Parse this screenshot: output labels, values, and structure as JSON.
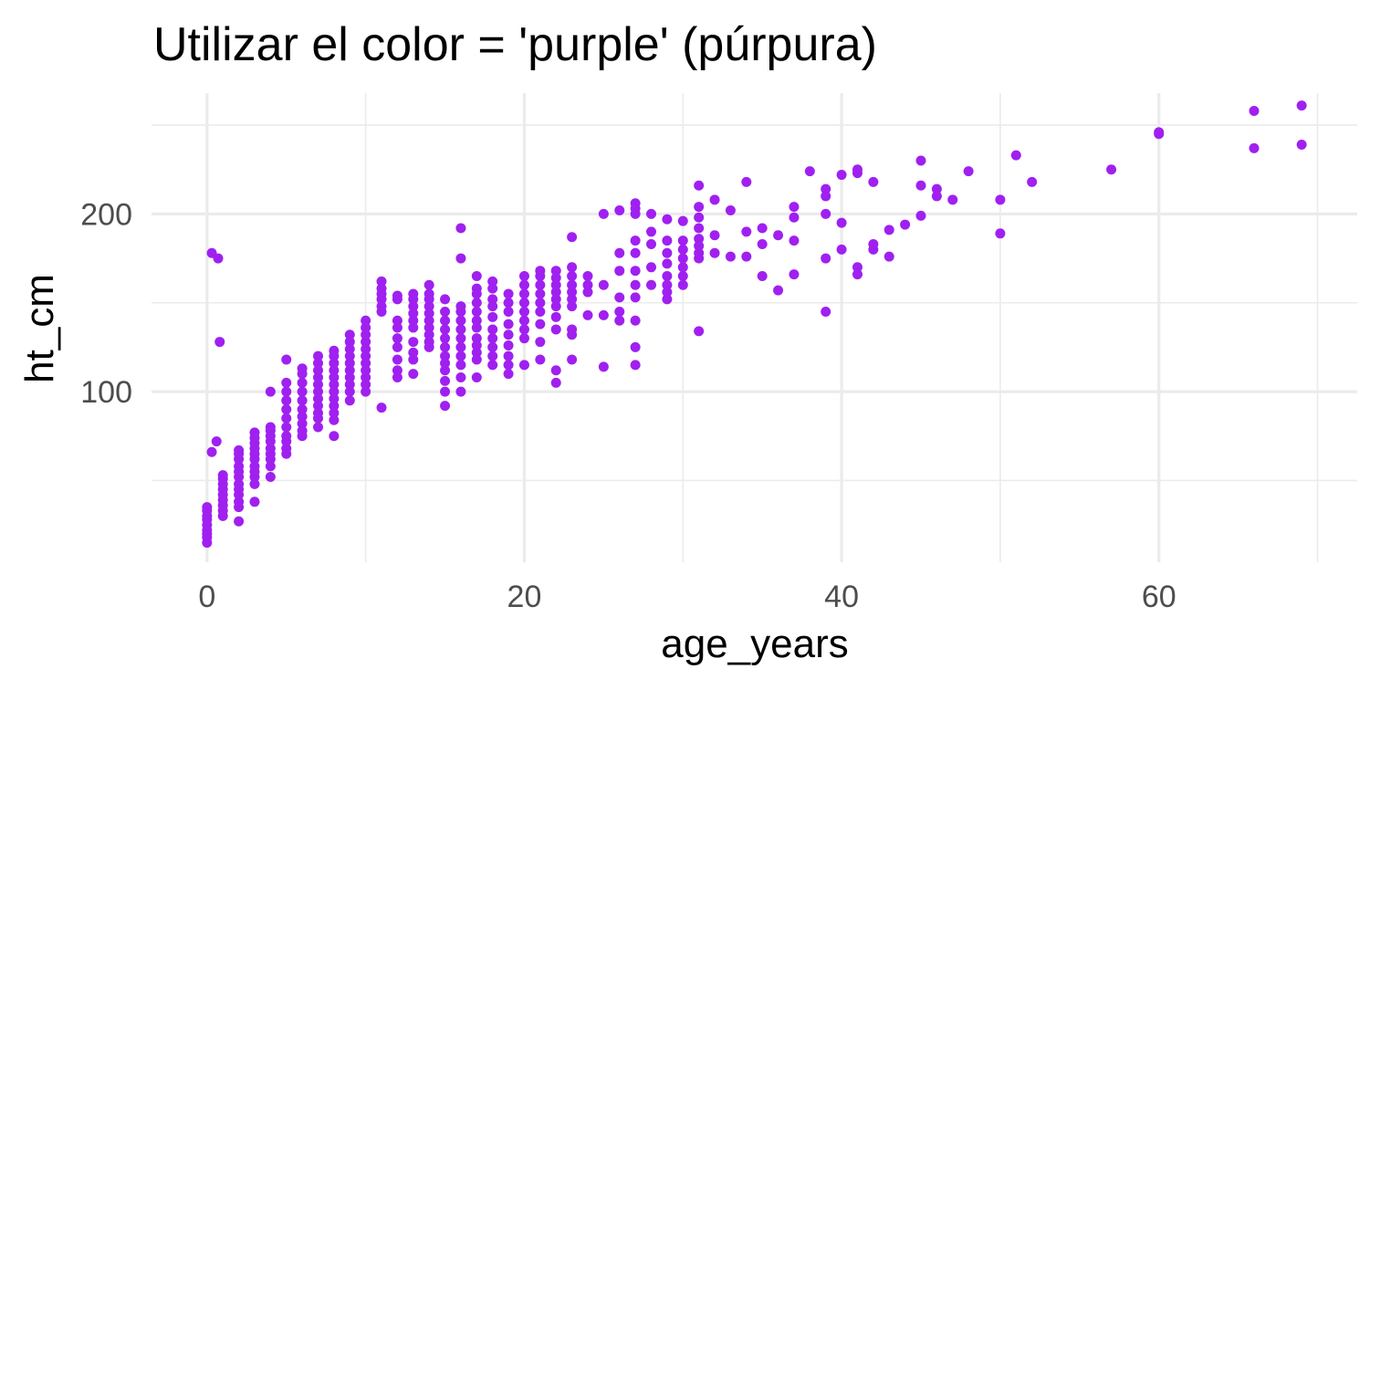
{
  "chart_data": {
    "type": "scatter",
    "title": "Utilizar el color = 'purple' (púrpura)",
    "xlabel": "age_years",
    "ylabel": "ht_cm",
    "xlim": [
      -3.5,
      72.5
    ],
    "ylim": [
      4,
      268
    ],
    "x_ticks": [
      0,
      20,
      40,
      60
    ],
    "x_tick_labels": [
      "0",
      "20",
      "40",
      "60"
    ],
    "x_minor_ticks": [
      10,
      30,
      50,
      70
    ],
    "y_ticks": [
      100,
      200
    ],
    "y_tick_labels": [
      "100",
      "200"
    ],
    "y_minor_ticks": [
      50,
      150,
      250
    ],
    "grid": true,
    "point_color": "#a020f0",
    "points": [
      [
        0,
        15
      ],
      [
        0,
        18
      ],
      [
        0,
        20
      ],
      [
        0,
        22
      ],
      [
        0,
        25
      ],
      [
        0,
        28
      ],
      [
        0,
        30
      ],
      [
        0,
        33
      ],
      [
        0,
        35
      ],
      [
        0.3,
        178
      ],
      [
        0.3,
        66
      ],
      [
        0.6,
        72
      ],
      [
        0.7,
        175
      ],
      [
        0.8,
        128
      ],
      [
        1,
        30
      ],
      [
        1,
        33
      ],
      [
        1,
        36
      ],
      [
        1,
        39
      ],
      [
        1,
        42
      ],
      [
        1,
        45
      ],
      [
        1,
        48
      ],
      [
        1,
        51
      ],
      [
        1,
        53
      ],
      [
        2,
        27
      ],
      [
        2,
        35
      ],
      [
        2,
        38
      ],
      [
        2,
        42
      ],
      [
        2,
        45
      ],
      [
        2,
        48
      ],
      [
        2,
        52
      ],
      [
        2,
        55
      ],
      [
        2,
        58
      ],
      [
        2,
        62
      ],
      [
        2,
        65
      ],
      [
        2,
        67
      ],
      [
        3,
        38
      ],
      [
        3,
        48
      ],
      [
        3,
        52
      ],
      [
        3,
        55
      ],
      [
        3,
        58
      ],
      [
        3,
        62
      ],
      [
        3,
        65
      ],
      [
        3,
        68
      ],
      [
        3,
        71
      ],
      [
        3,
        74
      ],
      [
        3,
        77
      ],
      [
        4,
        52
      ],
      [
        4,
        58
      ],
      [
        4,
        62
      ],
      [
        4,
        65
      ],
      [
        4,
        68
      ],
      [
        4,
        72
      ],
      [
        4,
        75
      ],
      [
        4,
        78
      ],
      [
        4,
        80
      ],
      [
        4,
        100
      ],
      [
        5,
        65
      ],
      [
        5,
        68
      ],
      [
        5,
        72
      ],
      [
        5,
        75
      ],
      [
        5,
        80
      ],
      [
        5,
        85
      ],
      [
        5,
        90
      ],
      [
        5,
        95
      ],
      [
        5,
        100
      ],
      [
        5,
        105
      ],
      [
        5,
        118
      ],
      [
        6,
        75
      ],
      [
        6,
        78
      ],
      [
        6,
        82
      ],
      [
        6,
        86
      ],
      [
        6,
        90
      ],
      [
        6,
        95
      ],
      [
        6,
        100
      ],
      [
        6,
        105
      ],
      [
        6,
        110
      ],
      [
        6,
        113
      ],
      [
        7,
        80
      ],
      [
        7,
        85
      ],
      [
        7,
        88
      ],
      [
        7,
        92
      ],
      [
        7,
        96
      ],
      [
        7,
        100
      ],
      [
        7,
        104
      ],
      [
        7,
        108
      ],
      [
        7,
        112
      ],
      [
        7,
        116
      ],
      [
        7,
        120
      ],
      [
        8,
        75
      ],
      [
        8,
        84
      ],
      [
        8,
        88
      ],
      [
        8,
        92
      ],
      [
        8,
        96
      ],
      [
        8,
        100
      ],
      [
        8,
        104
      ],
      [
        8,
        108
      ],
      [
        8,
        112
      ],
      [
        8,
        116
      ],
      [
        8,
        120
      ],
      [
        8,
        123
      ],
      [
        9,
        95
      ],
      [
        9,
        100
      ],
      [
        9,
        104
      ],
      [
        9,
        108
      ],
      [
        9,
        112
      ],
      [
        9,
        116
      ],
      [
        9,
        120
      ],
      [
        9,
        124
      ],
      [
        9,
        128
      ],
      [
        9,
        132
      ],
      [
        10,
        100
      ],
      [
        10,
        104
      ],
      [
        10,
        108
      ],
      [
        10,
        112
      ],
      [
        10,
        116
      ],
      [
        10,
        120
      ],
      [
        10,
        124
      ],
      [
        10,
        128
      ],
      [
        10,
        132
      ],
      [
        10,
        136
      ],
      [
        10,
        140
      ],
      [
        11,
        91
      ],
      [
        11,
        145
      ],
      [
        11,
        148
      ],
      [
        11,
        152
      ],
      [
        11,
        155
      ],
      [
        11,
        158
      ],
      [
        11,
        162
      ],
      [
        12,
        108
      ],
      [
        12,
        112
      ],
      [
        12,
        118
      ],
      [
        12,
        125
      ],
      [
        12,
        130
      ],
      [
        12,
        136
      ],
      [
        12,
        140
      ],
      [
        12,
        152
      ],
      [
        12,
        154
      ],
      [
        13,
        110
      ],
      [
        13,
        118
      ],
      [
        13,
        122
      ],
      [
        13,
        128
      ],
      [
        13,
        136
      ],
      [
        13,
        140
      ],
      [
        13,
        144
      ],
      [
        13,
        148
      ],
      [
        13,
        152
      ],
      [
        13,
        155
      ],
      [
        14,
        125
      ],
      [
        14,
        128
      ],
      [
        14,
        132
      ],
      [
        14,
        136
      ],
      [
        14,
        140
      ],
      [
        14,
        144
      ],
      [
        14,
        148
      ],
      [
        14,
        152
      ],
      [
        14,
        155
      ],
      [
        14,
        160
      ],
      [
        15,
        92
      ],
      [
        15,
        100
      ],
      [
        15,
        106
      ],
      [
        15,
        112
      ],
      [
        15,
        116
      ],
      [
        15,
        120
      ],
      [
        15,
        125
      ],
      [
        15,
        130
      ],
      [
        15,
        135
      ],
      [
        15,
        140
      ],
      [
        15,
        145
      ],
      [
        15,
        152
      ],
      [
        16,
        100
      ],
      [
        16,
        108
      ],
      [
        16,
        115
      ],
      [
        16,
        120
      ],
      [
        16,
        125
      ],
      [
        16,
        130
      ],
      [
        16,
        135
      ],
      [
        16,
        140
      ],
      [
        16,
        145
      ],
      [
        16,
        148
      ],
      [
        16,
        175
      ],
      [
        16,
        192
      ],
      [
        17,
        108
      ],
      [
        17,
        118
      ],
      [
        17,
        122
      ],
      [
        17,
        126
      ],
      [
        17,
        130
      ],
      [
        17,
        136
      ],
      [
        17,
        140
      ],
      [
        17,
        145
      ],
      [
        17,
        150
      ],
      [
        17,
        155
      ],
      [
        17,
        158
      ],
      [
        17,
        165
      ],
      [
        18,
        115
      ],
      [
        18,
        120
      ],
      [
        18,
        125
      ],
      [
        18,
        130
      ],
      [
        18,
        135
      ],
      [
        18,
        142
      ],
      [
        18,
        148
      ],
      [
        18,
        152
      ],
      [
        18,
        158
      ],
      [
        18,
        162
      ],
      [
        19,
        110
      ],
      [
        19,
        115
      ],
      [
        19,
        120
      ],
      [
        19,
        126
      ],
      [
        19,
        132
      ],
      [
        19,
        138
      ],
      [
        19,
        145
      ],
      [
        19,
        150
      ],
      [
        19,
        155
      ],
      [
        20,
        115
      ],
      [
        20,
        130
      ],
      [
        20,
        135
      ],
      [
        20,
        140
      ],
      [
        20,
        145
      ],
      [
        20,
        150
      ],
      [
        20,
        155
      ],
      [
        20,
        160
      ],
      [
        20,
        165
      ],
      [
        21,
        118
      ],
      [
        21,
        128
      ],
      [
        21,
        138
      ],
      [
        21,
        145
      ],
      [
        21,
        150
      ],
      [
        21,
        155
      ],
      [
        21,
        160
      ],
      [
        21,
        165
      ],
      [
        21,
        168
      ],
      [
        22,
        105
      ],
      [
        22,
        112
      ],
      [
        22,
        135
      ],
      [
        22,
        142
      ],
      [
        22,
        148
      ],
      [
        22,
        152
      ],
      [
        22,
        156
      ],
      [
        22,
        160
      ],
      [
        22,
        164
      ],
      [
        22,
        168
      ],
      [
        23,
        118
      ],
      [
        23,
        132
      ],
      [
        23,
        135
      ],
      [
        23,
        148
      ],
      [
        23,
        152
      ],
      [
        23,
        156
      ],
      [
        23,
        160
      ],
      [
        23,
        165
      ],
      [
        23,
        170
      ],
      [
        23,
        187
      ],
      [
        24,
        143
      ],
      [
        24,
        156
      ],
      [
        24,
        160
      ],
      [
        24,
        165
      ],
      [
        25,
        114
      ],
      [
        25,
        143
      ],
      [
        25,
        160
      ],
      [
        25,
        200
      ],
      [
        26,
        140
      ],
      [
        26,
        145
      ],
      [
        26,
        153
      ],
      [
        26,
        168
      ],
      [
        26,
        178
      ],
      [
        26,
        202
      ],
      [
        27,
        115
      ],
      [
        27,
        125
      ],
      [
        27,
        140
      ],
      [
        27,
        153
      ],
      [
        27,
        160
      ],
      [
        27,
        168
      ],
      [
        27,
        178
      ],
      [
        27,
        185
      ],
      [
        27,
        200
      ],
      [
        27,
        203
      ],
      [
        27,
        206
      ],
      [
        28,
        160
      ],
      [
        28,
        170
      ],
      [
        28,
        183
      ],
      [
        28,
        190
      ],
      [
        28,
        200
      ],
      [
        29,
        152
      ],
      [
        29,
        156
      ],
      [
        29,
        160
      ],
      [
        29,
        165
      ],
      [
        29,
        172
      ],
      [
        29,
        178
      ],
      [
        29,
        185
      ],
      [
        29,
        197
      ],
      [
        30,
        160
      ],
      [
        30,
        165
      ],
      [
        30,
        170
      ],
      [
        30,
        175
      ],
      [
        30,
        180
      ],
      [
        30,
        185
      ],
      [
        30,
        196
      ],
      [
        31,
        134
      ],
      [
        31,
        175
      ],
      [
        31,
        178
      ],
      [
        31,
        182
      ],
      [
        31,
        186
      ],
      [
        31,
        192
      ],
      [
        31,
        198
      ],
      [
        31,
        204
      ],
      [
        31,
        216
      ],
      [
        32,
        178
      ],
      [
        32,
        188
      ],
      [
        32,
        208
      ],
      [
        33,
        176
      ],
      [
        33,
        202
      ],
      [
        34,
        176
      ],
      [
        34,
        190
      ],
      [
        34,
        218
      ],
      [
        35,
        165
      ],
      [
        35,
        183
      ],
      [
        35,
        192
      ],
      [
        36,
        157
      ],
      [
        36,
        188
      ],
      [
        37,
        166
      ],
      [
        37,
        185
      ],
      [
        37,
        198
      ],
      [
        37,
        204
      ],
      [
        38,
        224
      ],
      [
        39,
        145
      ],
      [
        39,
        175
      ],
      [
        39,
        200
      ],
      [
        39,
        210
      ],
      [
        39,
        214
      ],
      [
        40,
        180
      ],
      [
        40,
        195
      ],
      [
        40,
        222
      ],
      [
        41,
        166
      ],
      [
        41,
        170
      ],
      [
        41,
        223
      ],
      [
        41,
        225
      ],
      [
        42,
        180
      ],
      [
        42,
        183
      ],
      [
        42,
        218
      ],
      [
        43,
        176
      ],
      [
        43,
        191
      ],
      [
        44,
        194
      ],
      [
        45,
        199
      ],
      [
        45,
        216
      ],
      [
        45,
        230
      ],
      [
        46,
        210
      ],
      [
        46,
        214
      ],
      [
        47,
        208
      ],
      [
        48,
        224
      ],
      [
        50,
        189
      ],
      [
        50,
        208
      ],
      [
        51,
        233
      ],
      [
        52,
        218
      ],
      [
        57,
        225
      ],
      [
        60,
        245
      ],
      [
        60,
        246
      ],
      [
        66,
        237
      ],
      [
        66,
        258
      ],
      [
        69,
        239
      ],
      [
        69,
        261
      ]
    ]
  }
}
